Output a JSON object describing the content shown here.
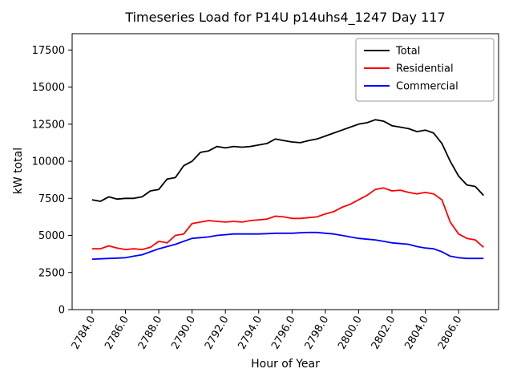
{
  "chart_data": {
    "type": "line",
    "title": "Timeseries Load for P14U p14uhs4_1247  Day 117",
    "xlabel": "Hour of Year",
    "ylabel": "kW total",
    "grid": false,
    "legend_position": "upper right",
    "xlim": [
      2782.8,
      2808.4
    ],
    "ylim": [
      0,
      18600
    ],
    "xticks": [
      2784,
      2786,
      2788,
      2790,
      2792,
      2794,
      2796,
      2798,
      2800,
      2802,
      2804,
      2806
    ],
    "xtick_labels": [
      "2784.0",
      "2786.0",
      "2788.0",
      "2790.0",
      "2792.0",
      "2794.0",
      "2796.0",
      "2798.0",
      "2800.0",
      "2802.0",
      "2804.0",
      "2806.0"
    ],
    "yticks": [
      0,
      2500,
      5000,
      7500,
      10000,
      12500,
      15000,
      17500
    ],
    "x": [
      2784.0,
      2784.5,
      2785.0,
      2785.5,
      2786.0,
      2786.5,
      2787.0,
      2787.5,
      2788.0,
      2788.5,
      2789.0,
      2789.5,
      2790.0,
      2790.5,
      2791.0,
      2791.5,
      2792.0,
      2792.5,
      2793.0,
      2793.5,
      2794.0,
      2794.5,
      2795.0,
      2795.5,
      2796.0,
      2796.5,
      2797.0,
      2797.5,
      2798.0,
      2798.5,
      2799.0,
      2799.5,
      2800.0,
      2800.5,
      2801.0,
      2801.5,
      2802.0,
      2802.5,
      2803.0,
      2803.5,
      2804.0,
      2804.5,
      2805.0,
      2805.5,
      2806.0,
      2806.5,
      2807.0,
      2807.5
    ],
    "series": [
      {
        "name": "Total",
        "color": "#000000",
        "values": [
          7400,
          7300,
          7600,
          7450,
          7500,
          7500,
          7600,
          8000,
          8100,
          8800,
          8900,
          9700,
          10000,
          10600,
          10700,
          11000,
          10900,
          11000,
          10950,
          11000,
          11100,
          11200,
          11500,
          11400,
          11300,
          11250,
          11400,
          11500,
          11700,
          11900,
          12100,
          12300,
          12500,
          12600,
          12800,
          12700,
          12400,
          12300,
          12200,
          12000,
          12100,
          11900,
          11200,
          10000,
          9000,
          8400,
          8300,
          7700
        ]
      },
      {
        "name": "Residential",
        "color": "#ff0000",
        "values": [
          4100,
          4100,
          4300,
          4150,
          4050,
          4100,
          4050,
          4200,
          4600,
          4500,
          5000,
          5100,
          5800,
          5900,
          6000,
          5950,
          5900,
          5950,
          5900,
          6000,
          6050,
          6100,
          6300,
          6250,
          6150,
          6150,
          6200,
          6250,
          6450,
          6600,
          6900,
          7100,
          7400,
          7700,
          8100,
          8200,
          8000,
          8050,
          7900,
          7800,
          7900,
          7800,
          7400,
          5900,
          5100,
          4800,
          4700,
          4200
        ]
      },
      {
        "name": "Commercial",
        "color": "#0000ff",
        "values": [
          3400,
          3420,
          3450,
          3470,
          3500,
          3600,
          3700,
          3900,
          4100,
          4250,
          4400,
          4600,
          4800,
          4850,
          4900,
          5000,
          5050,
          5100,
          5100,
          5100,
          5100,
          5120,
          5150,
          5150,
          5150,
          5180,
          5200,
          5200,
          5150,
          5100,
          5000,
          4900,
          4800,
          4750,
          4700,
          4600,
          4500,
          4450,
          4400,
          4250,
          4150,
          4100,
          3900,
          3600,
          3500,
          3450,
          3450,
          3450
        ]
      }
    ]
  }
}
